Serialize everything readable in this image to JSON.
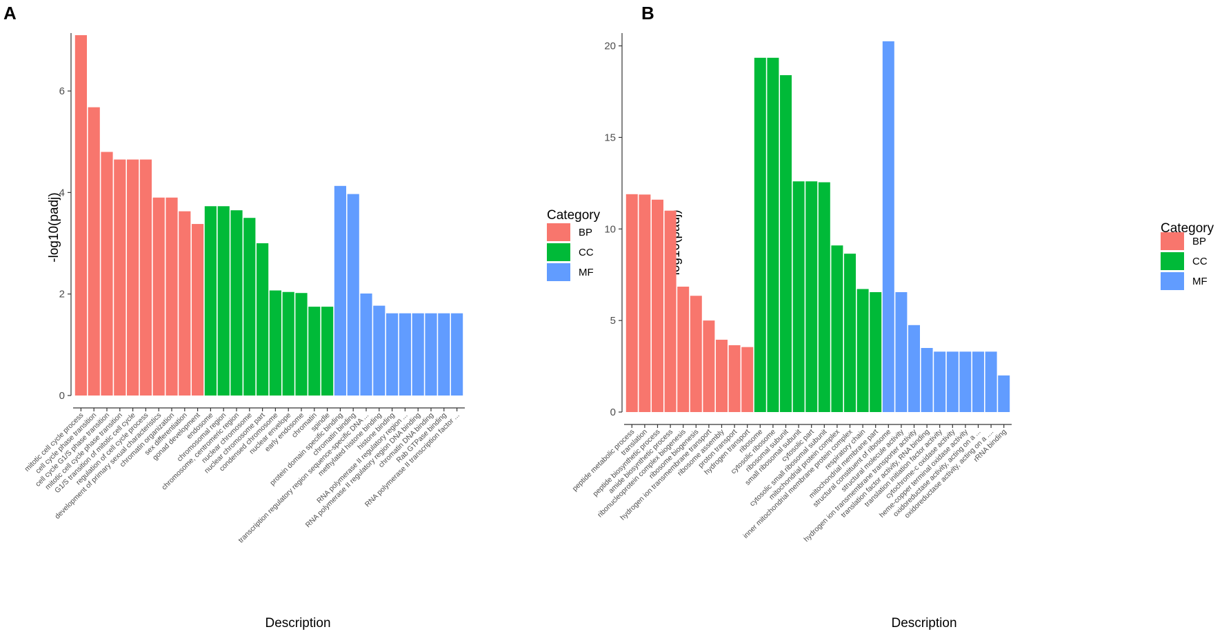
{
  "colors": {
    "BP": "#F8766D",
    "CC": "#00BA38",
    "MF": "#619CFF"
  },
  "chart_data": [
    {
      "panel_label": "A",
      "type": "bar",
      "xlabel": "Description",
      "ylabel": "-log10(padj)",
      "ylim": [
        0,
        7.25
      ],
      "yticks": [
        "0",
        "2",
        "4",
        "6"
      ],
      "legend": {
        "title": "Category",
        "entries": [
          "BP",
          "CC",
          "MF"
        ],
        "placement": "right"
      },
      "categories": [
        "mitotic cell cycle process",
        "cell cycle phase transition",
        "cell cycle G1/S phase transition",
        "mitotic cell cycle phase transition",
        "G1/S transition of mitotic cell cycle",
        "regulation of cell cycle process",
        "development of primary sexual characteristics",
        "chromatin organization",
        "sex differentiation",
        "gonad development",
        "endosome",
        "chromosomal region",
        "chromosome, centromeric region",
        "nuclear chromosome",
        "nuclear chromosome part",
        "condensed chromosome",
        "nuclear envelope",
        "early endosome",
        "chromatin",
        "spindle",
        "protein domain specific binding",
        "chromatin binding",
        "transcription regulatory region sequence-specific DNA ...",
        "methylated histone binding",
        "histone binding",
        "RNA polymerase II regulatory region ...",
        "RNA polymerase II regulatory region DNA binding",
        "chromatin DNA binding",
        "Rab GTPase binding",
        "RNA polymerase II transcription factor ..."
      ],
      "category_group": [
        "BP",
        "BP",
        "BP",
        "BP",
        "BP",
        "BP",
        "BP",
        "BP",
        "BP",
        "BP",
        "CC",
        "CC",
        "CC",
        "CC",
        "CC",
        "CC",
        "CC",
        "CC",
        "CC",
        "CC",
        "MF",
        "MF",
        "MF",
        "MF",
        "MF",
        "MF",
        "MF",
        "MF",
        "MF",
        "MF"
      ],
      "values": [
        7.1,
        5.68,
        4.8,
        4.65,
        4.65,
        4.65,
        3.9,
        3.9,
        3.63,
        3.38,
        3.73,
        3.73,
        3.65,
        3.5,
        3.0,
        2.07,
        2.04,
        2.02,
        1.75,
        1.75,
        4.13,
        3.97,
        2.01,
        1.77,
        1.62,
        1.62,
        1.62,
        1.62,
        1.62,
        1.62
      ]
    },
    {
      "panel_label": "B",
      "type": "bar",
      "xlabel": "Description",
      "ylabel": "-log10(padj)",
      "ylim": [
        0,
        21
      ],
      "yticks": [
        "0",
        "5",
        "10",
        "15",
        "20"
      ],
      "legend": {
        "title": "Category",
        "entries": [
          "BP",
          "CC",
          "MF"
        ],
        "placement": "right"
      },
      "categories": [
        "peptide metabolic process",
        "translation",
        "peptide biosynthetic process",
        "amide biosynthetic process",
        "ribonucleoprotein complex biogenesis",
        "ribosome biogenesis",
        "hydrogen ion transmembrane transport",
        "ribosome assembly",
        "proton transport",
        "hydrogen transport",
        "ribosome",
        "cytosolic ribosome",
        "ribosomal subunit",
        "small ribosomal subunit",
        "cytosolic part",
        "cytosolic small ribosomal subunit",
        "mitochondrial protein complex",
        "inner mitochondrial membrane protein complex",
        "respiratory chain",
        "mitochondrial membrane part",
        "structural constituent of ribosome",
        "structural molecule activity",
        "hydrogen ion transmembrane transporter activity",
        "translation factor activity, RNA binding",
        "translation initiation factor activity",
        "cytochrome-c oxidase activity",
        "heme-copper terminal oxidase activity",
        "oxidoreductase activity, acting on a ...",
        "oxidoreductase activity, acting on a ....",
        "rRNA binding"
      ],
      "category_group": [
        "BP",
        "BP",
        "BP",
        "BP",
        "BP",
        "BP",
        "BP",
        "BP",
        "BP",
        "BP",
        "CC",
        "CC",
        "CC",
        "CC",
        "CC",
        "CC",
        "CC",
        "CC",
        "CC",
        "CC",
        "MF",
        "MF",
        "MF",
        "MF",
        "MF",
        "MF",
        "MF",
        "MF",
        "MF",
        "MF"
      ],
      "values": [
        11.9,
        11.88,
        11.6,
        11.0,
        6.85,
        6.35,
        5.0,
        3.95,
        3.65,
        3.55,
        19.35,
        19.35,
        18.4,
        12.6,
        12.6,
        12.55,
        9.1,
        8.65,
        6.72,
        6.55,
        20.25,
        6.55,
        4.75,
        3.5,
        3.3,
        3.3,
        3.3,
        3.3,
        3.3,
        2.0
      ]
    }
  ]
}
